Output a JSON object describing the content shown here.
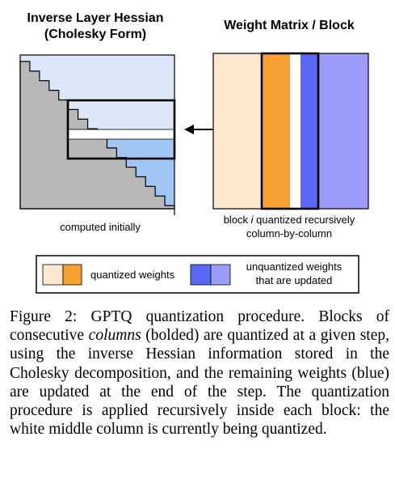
{
  "left_panel": {
    "title_line1": "Inverse Layer Hessian",
    "title_line2": "(Cholesky Form)",
    "caption": "computed initially"
  },
  "right_panel": {
    "title": "Weight Matrix / Block",
    "caption_line1_pre": "block ",
    "caption_line1_var": "i",
    "caption_line1_post": " quantized recursively",
    "caption_line2": "column-by-column"
  },
  "legend": {
    "quantized_label": "quantized weights",
    "unquantized_line1": "unquantized weights",
    "unquantized_line2": "that are updated"
  },
  "figure_caption": {
    "p1": "Figure 2: GPTQ quantization procedure. Blocks of consecutive ",
    "italic": "columns",
    "p2": " (bolded) are quantized at a given step, using the inverse Hessian information stored in the Cholesky decomposition, and the remaining weights (blue) are updated at the end of the step. The quantization procedure is applied recursively inside each block: the white middle column is currently being quantized."
  },
  "colors": {
    "hessian_bg": "#dce8fa",
    "hessian_lower": "#b8b8b8",
    "hessian_highlight": "#9fc6f5",
    "quantized_light": "#fde7ce",
    "quantized_dark": "#f7a034",
    "unquantized_dark": "#5a68f5",
    "unquantized_light": "#9b9cf7",
    "white": "#ffffff",
    "stroke": "#000000"
  }
}
